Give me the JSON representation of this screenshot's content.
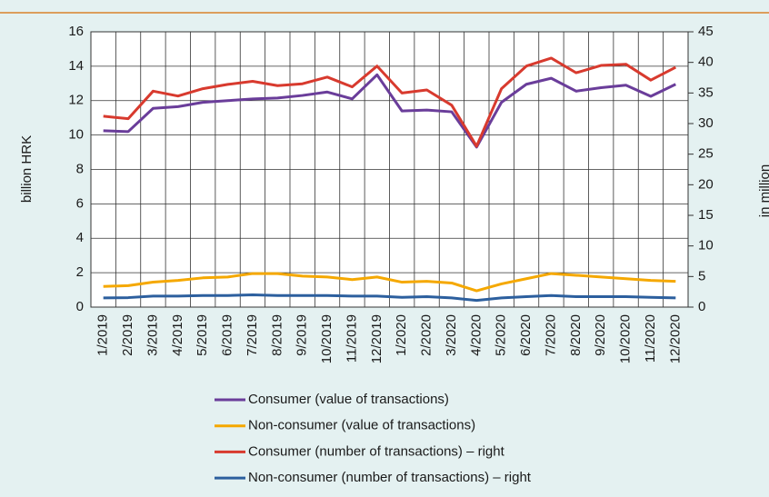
{
  "chart_data": {
    "type": "line",
    "y_label": "billion HRK",
    "y2_label": "in million",
    "categories": [
      "1/2019",
      "2/2019",
      "3/2019",
      "4/2019",
      "5/2019",
      "6/2019",
      "7/2019",
      "8/2019",
      "9/2019",
      "10/2019",
      "11/2019",
      "12/2019",
      "1/2020",
      "2/2020",
      "3/2020",
      "4/2020",
      "5/2020",
      "6/2020",
      "7/2020",
      "8/2020",
      "9/2020",
      "10/2020",
      "11/2020",
      "12/2020"
    ],
    "series": [
      {
        "name": "Consumer (value of transactions)",
        "color": "#6a3d9a",
        "values": [
          10.25,
          10.2,
          11.55,
          11.65,
          11.9,
          12.0,
          12.1,
          12.15,
          12.3,
          12.5,
          12.1,
          13.5,
          11.4,
          11.45,
          11.35,
          9.3,
          11.9,
          12.95,
          13.3,
          12.55,
          12.75,
          12.9,
          12.25,
          12.95
        ]
      },
      {
        "name": "Non-consumer (value of transactions)",
        "color": "#f5a800",
        "values": [
          1.2,
          1.25,
          1.45,
          1.55,
          1.7,
          1.75,
          1.95,
          1.95,
          1.8,
          1.75,
          1.6,
          1.75,
          1.45,
          1.5,
          1.4,
          0.95,
          1.35,
          1.65,
          1.95,
          1.85,
          1.75,
          1.65,
          1.55,
          1.5
        ]
      },
      {
        "name": "Consumer (number of transactions) – right",
        "color": "#d83a2e",
        "axis": "y2",
        "values": [
          31.2,
          30.8,
          35.3,
          34.5,
          35.7,
          36.4,
          36.9,
          36.2,
          36.5,
          37.6,
          36.0,
          39.4,
          35.0,
          35.5,
          33.0,
          26.3,
          35.7,
          39.4,
          40.7,
          38.3,
          39.5,
          39.7,
          37.1,
          39.2
        ]
      },
      {
        "name": "Non-consumer (number of transactions) – right",
        "color": "#2c5f9e",
        "axis": "y2",
        "values": [
          1.5,
          1.55,
          1.8,
          1.8,
          1.9,
          1.9,
          2.0,
          1.9,
          1.9,
          1.9,
          1.8,
          1.8,
          1.6,
          1.7,
          1.5,
          1.1,
          1.5,
          1.7,
          1.9,
          1.7,
          1.7,
          1.7,
          1.6,
          1.5
        ]
      }
    ],
    "ylim": [
      0,
      16
    ],
    "yticks": [
      0,
      2,
      4,
      6,
      8,
      10,
      12,
      14,
      16
    ],
    "y2lim": [
      0,
      45
    ],
    "y2ticks": [
      0,
      5,
      10,
      15,
      20,
      25,
      30,
      35,
      40,
      45
    ],
    "grid": true
  }
}
